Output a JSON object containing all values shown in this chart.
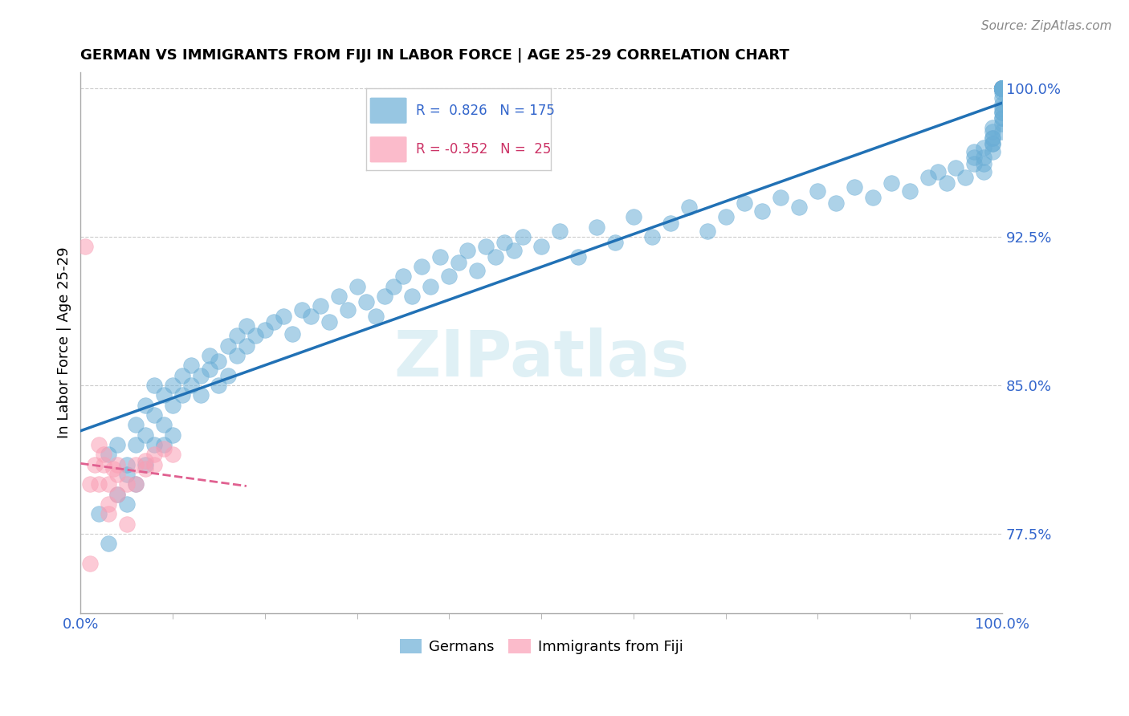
{
  "title": "GERMAN VS IMMIGRANTS FROM FIJI IN LABOR FORCE | AGE 25-29 CORRELATION CHART",
  "source_text": "Source: ZipAtlas.com",
  "ylabel": "In Labor Force | Age 25-29",
  "watermark": "ZIPatlas",
  "xlim": [
    0.0,
    1.0
  ],
  "ylim": [
    0.735,
    1.008
  ],
  "blue_R": 0.826,
  "blue_N": 175,
  "pink_R": -0.352,
  "pink_N": 25,
  "blue_color": "#6baed6",
  "pink_color": "#fa9fb5",
  "blue_line_color": "#2171b5",
  "pink_line_color": "#e06090",
  "right_yticks": [
    0.775,
    0.85,
    0.925,
    1.0
  ],
  "right_yticklabels": [
    "77.5%",
    "85.0%",
    "92.5%",
    "100.0%"
  ],
  "bottom_xticklabels": [
    "0.0%",
    "100.0%"
  ],
  "legend_entries": [
    "Germans",
    "Immigrants from Fiji"
  ],
  "blue_scatter_x": [
    0.02,
    0.03,
    0.03,
    0.04,
    0.04,
    0.05,
    0.05,
    0.05,
    0.06,
    0.06,
    0.06,
    0.07,
    0.07,
    0.07,
    0.08,
    0.08,
    0.08,
    0.09,
    0.09,
    0.09,
    0.1,
    0.1,
    0.1,
    0.11,
    0.11,
    0.12,
    0.12,
    0.13,
    0.13,
    0.14,
    0.14,
    0.15,
    0.15,
    0.16,
    0.16,
    0.17,
    0.17,
    0.18,
    0.18,
    0.19,
    0.2,
    0.21,
    0.22,
    0.23,
    0.24,
    0.25,
    0.26,
    0.27,
    0.28,
    0.29,
    0.3,
    0.31,
    0.32,
    0.33,
    0.34,
    0.35,
    0.36,
    0.37,
    0.38,
    0.39,
    0.4,
    0.41,
    0.42,
    0.43,
    0.44,
    0.45,
    0.46,
    0.47,
    0.48,
    0.5,
    0.52,
    0.54,
    0.56,
    0.58,
    0.6,
    0.62,
    0.64,
    0.66,
    0.68,
    0.7,
    0.72,
    0.74,
    0.76,
    0.78,
    0.8,
    0.82,
    0.84,
    0.86,
    0.88,
    0.9,
    0.92,
    0.93,
    0.94,
    0.95,
    0.96,
    0.97,
    0.97,
    0.97,
    0.98,
    0.98,
    0.98,
    0.98,
    0.99,
    0.99,
    0.99,
    0.99,
    0.99,
    0.99,
    0.99,
    1.0,
    1.0,
    1.0,
    1.0,
    1.0,
    1.0,
    1.0,
    1.0,
    1.0,
    1.0,
    1.0,
    1.0,
    1.0,
    1.0,
    1.0,
    1.0,
    1.0,
    1.0,
    1.0,
    1.0,
    1.0,
    1.0,
    1.0,
    1.0,
    1.0,
    1.0,
    1.0,
    1.0,
    1.0,
    1.0,
    1.0,
    1.0,
    1.0,
    1.0,
    1.0,
    1.0,
    1.0,
    1.0,
    1.0,
    1.0,
    1.0,
    1.0,
    1.0,
    1.0,
    1.0,
    1.0,
    1.0,
    1.0,
    1.0,
    1.0,
    1.0,
    1.0,
    1.0,
    1.0,
    1.0,
    1.0,
    1.0,
    1.0,
    1.0,
    1.0,
    1.0,
    1.0,
    1.0,
    1.0,
    1.0,
    1.0
  ],
  "blue_scatter_y": [
    0.785,
    0.77,
    0.815,
    0.795,
    0.82,
    0.805,
    0.79,
    0.81,
    0.82,
    0.83,
    0.8,
    0.825,
    0.84,
    0.81,
    0.835,
    0.82,
    0.85,
    0.845,
    0.83,
    0.82,
    0.85,
    0.84,
    0.825,
    0.855,
    0.845,
    0.86,
    0.85,
    0.855,
    0.845,
    0.865,
    0.858,
    0.862,
    0.85,
    0.87,
    0.855,
    0.875,
    0.865,
    0.88,
    0.87,
    0.875,
    0.878,
    0.882,
    0.885,
    0.876,
    0.888,
    0.885,
    0.89,
    0.882,
    0.895,
    0.888,
    0.9,
    0.892,
    0.885,
    0.895,
    0.9,
    0.905,
    0.895,
    0.91,
    0.9,
    0.915,
    0.905,
    0.912,
    0.918,
    0.908,
    0.92,
    0.915,
    0.922,
    0.918,
    0.925,
    0.92,
    0.928,
    0.915,
    0.93,
    0.922,
    0.935,
    0.925,
    0.932,
    0.94,
    0.928,
    0.935,
    0.942,
    0.938,
    0.945,
    0.94,
    0.948,
    0.942,
    0.95,
    0.945,
    0.952,
    0.948,
    0.955,
    0.958,
    0.952,
    0.96,
    0.955,
    0.962,
    0.965,
    0.968,
    0.958,
    0.962,
    0.965,
    0.97,
    0.972,
    0.968,
    0.975,
    0.978,
    0.972,
    0.98,
    0.975,
    0.982,
    0.985,
    0.978,
    0.988,
    0.985,
    0.99,
    0.992,
    0.988,
    0.995,
    0.998,
    1.0,
    1.0,
    1.0,
    1.0,
    1.0,
    1.0,
    1.0,
    1.0,
    1.0,
    1.0,
    1.0,
    1.0,
    1.0,
    1.0,
    1.0,
    1.0,
    1.0,
    1.0,
    1.0,
    1.0,
    1.0,
    1.0,
    1.0,
    1.0,
    1.0,
    1.0,
    1.0,
    1.0,
    1.0,
    1.0,
    1.0,
    1.0,
    1.0,
    1.0,
    1.0,
    1.0,
    1.0,
    1.0,
    1.0,
    1.0,
    1.0,
    1.0,
    1.0,
    1.0,
    1.0,
    1.0,
    1.0,
    1.0,
    1.0,
    1.0,
    1.0,
    1.0,
    1.0,
    1.0,
    1.0,
    1.0
  ],
  "pink_scatter_x": [
    0.005,
    0.01,
    0.01,
    0.015,
    0.02,
    0.02,
    0.025,
    0.025,
    0.03,
    0.03,
    0.03,
    0.035,
    0.04,
    0.04,
    0.04,
    0.05,
    0.05,
    0.06,
    0.06,
    0.07,
    0.07,
    0.08,
    0.08,
    0.09,
    0.1
  ],
  "pink_scatter_y": [
    0.92,
    0.76,
    0.8,
    0.81,
    0.82,
    0.8,
    0.815,
    0.81,
    0.8,
    0.79,
    0.785,
    0.808,
    0.795,
    0.805,
    0.81,
    0.8,
    0.78,
    0.81,
    0.8,
    0.812,
    0.808,
    0.815,
    0.81,
    0.818,
    0.815
  ]
}
